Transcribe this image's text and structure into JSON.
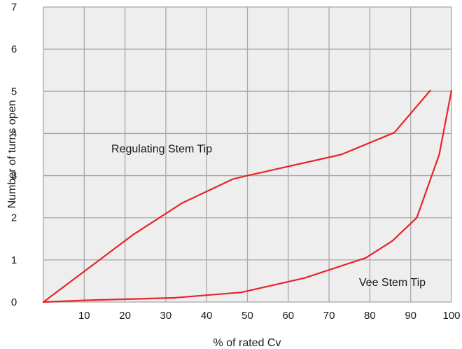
{
  "chart_data": {
    "type": "line",
    "xlabel": "% of rated Cv",
    "ylabel": "Number of turns open",
    "xlim": [
      0,
      100
    ],
    "ylim": [
      0,
      7
    ],
    "x_ticks": [
      10,
      20,
      30,
      40,
      50,
      60,
      70,
      80,
      90,
      100
    ],
    "y_ticks": [
      0,
      1,
      2,
      3,
      4,
      5,
      6,
      7
    ],
    "grid": true,
    "colors": {
      "background": "#eeeeee",
      "grid": "#a8a8a8",
      "series": "#e8242a"
    },
    "series": [
      {
        "name": "Regulating Stem Tip",
        "x": [
          0,
          22,
          34,
          46.5,
          50,
          73,
          86,
          94.8
        ],
        "y": [
          0,
          1.6,
          2.35,
          2.92,
          3.0,
          3.5,
          4.02,
          5.02
        ]
      },
      {
        "name": "Vee Stem Tip",
        "x": [
          0,
          10,
          32,
          48.5,
          64,
          79,
          85.5,
          91.5,
          97,
          100
        ],
        "y": [
          0,
          0.04,
          0.1,
          0.23,
          0.57,
          1.05,
          1.45,
          2.0,
          3.5,
          5.02
        ]
      }
    ],
    "annotations": [
      {
        "text": "Regulating Stem Tip",
        "x": 29,
        "y": 3.55
      },
      {
        "text": "Vee Stem Tip",
        "x": 85.5,
        "y": 0.38
      }
    ]
  }
}
